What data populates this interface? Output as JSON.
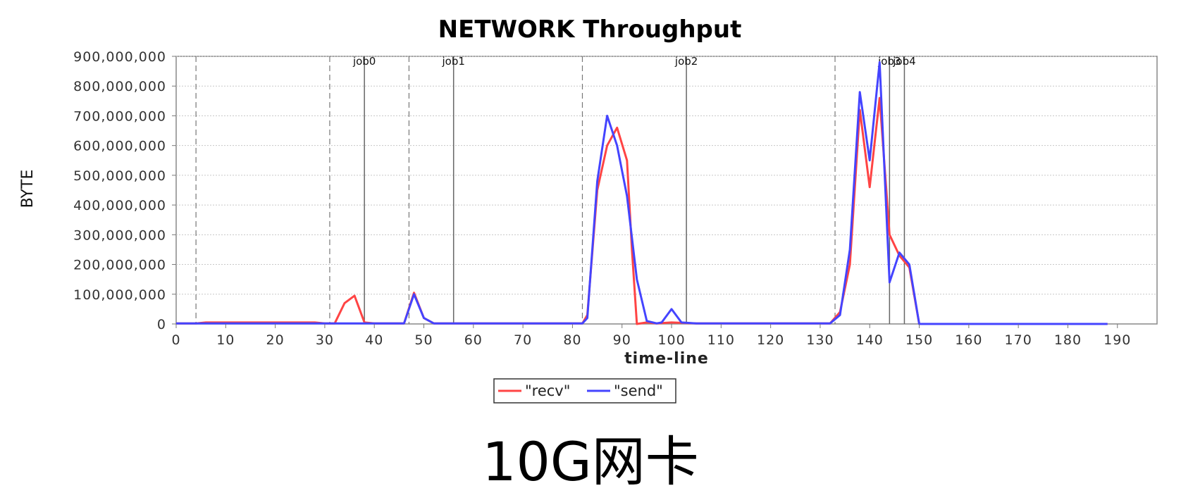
{
  "chart_data": {
    "type": "line",
    "title": "NETWORK Throughput",
    "xlabel": "time-line",
    "ylabel": "BYTE",
    "xlim": [
      0,
      198
    ],
    "ylim": [
      0,
      900000000
    ],
    "x_ticks": [
      0,
      10,
      20,
      30,
      40,
      50,
      60,
      70,
      80,
      90,
      100,
      110,
      120,
      130,
      140,
      150,
      160,
      170,
      180,
      190
    ],
    "y_ticks": [
      0,
      100000000,
      200000000,
      300000000,
      400000000,
      500000000,
      600000000,
      700000000,
      800000000,
      900000000
    ],
    "y_tick_labels": [
      "0",
      "100,000,000",
      "200,000,000",
      "300,000,000",
      "400,000,000",
      "500,000,000",
      "600,000,000",
      "700,000,000",
      "800,000,000",
      "900,000,000"
    ],
    "grid": true,
    "legend_position": "bottom-center",
    "markers": [
      {
        "label": "job0",
        "x": 38
      },
      {
        "label": "job1",
        "x": 56
      },
      {
        "label": "job2",
        "x": 103
      },
      {
        "label": "job3",
        "x": 144
      },
      {
        "label": "job4",
        "x": 147
      }
    ],
    "dashed_markers_x": [
      4,
      31,
      47,
      82,
      133
    ],
    "series": [
      {
        "name": "\"recv\"",
        "color": "#ff4444",
        "points": [
          [
            0,
            2000000
          ],
          [
            4,
            2000000
          ],
          [
            6,
            5000000
          ],
          [
            10,
            5000000
          ],
          [
            20,
            5000000
          ],
          [
            28,
            5000000
          ],
          [
            30,
            2000000
          ],
          [
            32,
            2000000
          ],
          [
            34,
            70000000
          ],
          [
            36,
            95000000
          ],
          [
            38,
            5000000
          ],
          [
            40,
            2000000
          ],
          [
            44,
            2000000
          ],
          [
            46,
            2000000
          ],
          [
            48,
            105000000
          ],
          [
            50,
            20000000
          ],
          [
            52,
            2000000
          ],
          [
            60,
            2000000
          ],
          [
            70,
            2000000
          ],
          [
            80,
            2000000
          ],
          [
            82,
            2000000
          ],
          [
            83,
            30000000
          ],
          [
            85,
            450000000
          ],
          [
            87,
            600000000
          ],
          [
            89,
            660000000
          ],
          [
            91,
            550000000
          ],
          [
            92,
            250000000
          ],
          [
            93,
            0
          ],
          [
            95,
            5000000
          ],
          [
            97,
            2000000
          ],
          [
            100,
            5000000
          ],
          [
            105,
            2000000
          ],
          [
            110,
            2000000
          ],
          [
            120,
            2000000
          ],
          [
            130,
            2000000
          ],
          [
            132,
            2000000
          ],
          [
            134,
            40000000
          ],
          [
            136,
            200000000
          ],
          [
            138,
            720000000
          ],
          [
            140,
            460000000
          ],
          [
            142,
            760000000
          ],
          [
            144,
            300000000
          ],
          [
            146,
            230000000
          ],
          [
            148,
            190000000
          ],
          [
            150,
            0
          ],
          [
            160,
            0
          ],
          [
            170,
            0
          ],
          [
            180,
            0
          ],
          [
            188,
            0
          ]
        ]
      },
      {
        "name": "\"send\"",
        "color": "#4444ff",
        "points": [
          [
            0,
            2000000
          ],
          [
            30,
            2000000
          ],
          [
            34,
            2000000
          ],
          [
            36,
            2000000
          ],
          [
            38,
            2000000
          ],
          [
            44,
            2000000
          ],
          [
            46,
            2000000
          ],
          [
            48,
            100000000
          ],
          [
            50,
            20000000
          ],
          [
            52,
            2000000
          ],
          [
            60,
            2000000
          ],
          [
            70,
            2000000
          ],
          [
            80,
            2000000
          ],
          [
            82,
            2000000
          ],
          [
            83,
            20000000
          ],
          [
            85,
            480000000
          ],
          [
            87,
            700000000
          ],
          [
            89,
            600000000
          ],
          [
            91,
            430000000
          ],
          [
            93,
            150000000
          ],
          [
            95,
            10000000
          ],
          [
            97,
            2000000
          ],
          [
            98,
            5000000
          ],
          [
            100,
            50000000
          ],
          [
            102,
            5000000
          ],
          [
            105,
            2000000
          ],
          [
            110,
            2000000
          ],
          [
            120,
            2000000
          ],
          [
            130,
            2000000
          ],
          [
            132,
            2000000
          ],
          [
            134,
            30000000
          ],
          [
            136,
            250000000
          ],
          [
            138,
            780000000
          ],
          [
            140,
            550000000
          ],
          [
            142,
            880000000
          ],
          [
            144,
            140000000
          ],
          [
            146,
            240000000
          ],
          [
            148,
            200000000
          ],
          [
            150,
            0
          ],
          [
            160,
            0
          ],
          [
            170,
            0
          ],
          [
            180,
            0
          ],
          [
            188,
            0
          ]
        ]
      }
    ]
  },
  "caption": "10G网卡"
}
